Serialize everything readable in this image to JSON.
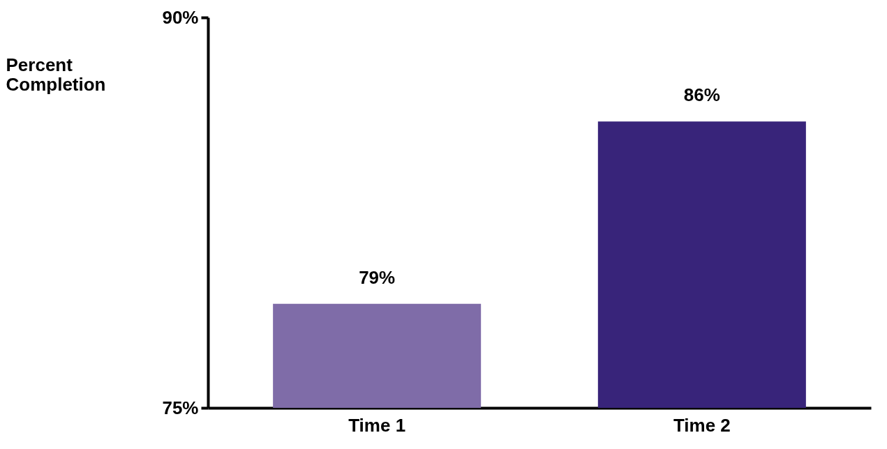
{
  "chart_data": {
    "type": "bar",
    "ylabel": "Percent Completion",
    "categories": [
      "Time 1",
      "Time 2"
    ],
    "values": [
      79,
      86
    ],
    "colors": [
      "#7f6ca8",
      "#38247a"
    ],
    "value_labels": [
      "79%",
      "86%"
    ],
    "ylim": [
      75,
      90
    ],
    "yticks": [
      {
        "value": 75,
        "label": "75%"
      },
      {
        "value": 90,
        "label": "90%"
      }
    ],
    "grid": false
  }
}
